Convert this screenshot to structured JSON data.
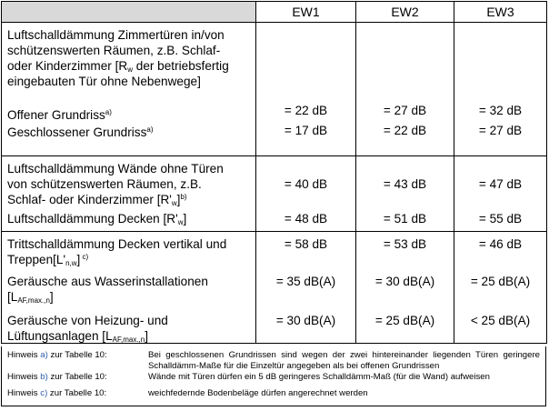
{
  "header": {
    "columns": [
      "EW1",
      "EW2",
      "EW3"
    ]
  },
  "section1": {
    "line1": "Luftschalldämmung Zimmertüren in/von",
    "line2": "schützenswerten Räumen, z.B. Schlaf-",
    "line3": "oder Kinderzimmer [R",
    "line3_sub": "w",
    "line3_tail": " der betriebsfertig",
    "line4": "eingebauten Tür ohne Nebenwege]",
    "rows": [
      {
        "label": "Offener Grundriss",
        "sup": "a)",
        "values": [
          "= 22 dB",
          "= 27 dB",
          "= 32 dB"
        ]
      },
      {
        "label": "Geschlossener Grundriss",
        "sup": "a)",
        "values": [
          "= 17 dB",
          "= 22 dB",
          "= 27 dB"
        ]
      }
    ]
  },
  "section2": {
    "walls_line1": "Luftschalldämmung Wände ohne Türen",
    "walls_line2": "von schützenswerten Räumen, z.B.",
    "walls_line3": "Schlaf- oder Kinderzimmer [R'",
    "walls_line3_sub": "w",
    "walls_line3_tail": "]",
    "walls_sup": "b)",
    "walls_values": [
      "= 40 dB",
      "= 43 dB",
      "= 47 dB"
    ],
    "ceil_label": "Luftschalldämmung Decken [R'",
    "ceil_sub": "w",
    "ceil_tail": "]",
    "ceil_values": [
      "= 48 dB",
      "= 51 dB",
      "= 55 dB"
    ]
  },
  "section3": {
    "tritt_line1": "Trittschalldämmung Decken vertikal und",
    "tritt_line2": "Treppen[L'",
    "tritt_sub": "n,w",
    "tritt_tail": "]",
    "tritt_sup": " c)",
    "tritt_values": [
      "= 58 dB",
      "= 53 dB",
      "= 46 dB"
    ],
    "water_line1": "Geräusche aus Wasserinstallationen",
    "water_line2": "[L",
    "water_sub": "AF,max.,n",
    "water_tail": "]",
    "water_values": [
      "= 35 dB(A)",
      "= 30 dB(A)",
      "= 25 dB(A)"
    ],
    "heat_line1": "Geräusche von Heizung- und",
    "heat_line2": "Lüftungsanlagen [L",
    "heat_sub": "AF,max.,n",
    "heat_tail": "]",
    "heat_values": [
      "= 30 dB(A)",
      "= 25 dB(A)",
      "< 25 dB(A)"
    ]
  },
  "notes": [
    {
      "prefix": "Hinweis ",
      "letter": "a)",
      "suffix": " zur Tabelle 10:",
      "text": "Bei geschlossenen Grundrissen sind wegen der zwei hintereinander liegenden Türen geringere Schalldämm-Maße für die Einzeltür angegeben als bei offenen Grundrissen"
    },
    {
      "prefix": "Hinweis ",
      "letter": "b)",
      "suffix": " zur Tabelle 10:",
      "text": "Wände mit Türen dürfen ein 5 dB geringeres Schalldämm-Maß (für die Wand) aufweisen"
    },
    {
      "prefix": "Hinweis ",
      "letter": "c)",
      "suffix": " zur Tabelle 10:",
      "text": "weichfedernde Bodenbeläge dürfen angerechnet werden"
    }
  ]
}
